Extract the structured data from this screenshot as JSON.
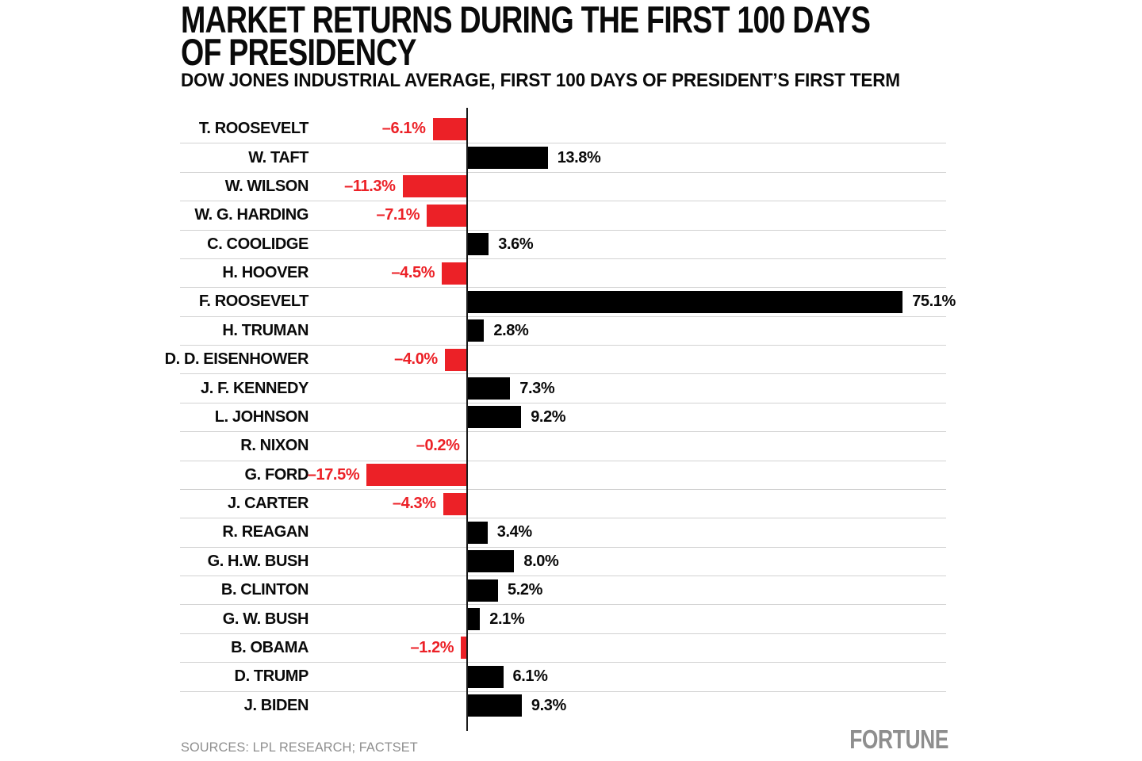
{
  "page": {
    "title_lines": [
      "MARKET RETURNS DURING THE FIRST 100 DAYS",
      "OF PRESIDENCY"
    ],
    "subtitle": "DOW JONES INDUSTRIAL AVERAGE, FIRST 100 DAYS OF PRESIDENT’S FIRST TERM",
    "source_note": "SOURCES: LPL RESEARCH; FACTSET",
    "brand": "FORTUNE"
  },
  "colors": {
    "background": "#ffffff",
    "text": "#0a0a0a",
    "positive": "#000000",
    "negative": "#EC2127",
    "gridline": "#d2d2d2",
    "axis": "#1b1b1b",
    "muted": "#8e8e8e"
  },
  "chart_data": {
    "type": "bar",
    "orientation": "horizontal",
    "title": "MARKET RETURNS DURING THE FIRST 100 DAYS OF PRESIDENCY",
    "subtitle": "DOW JONES INDUSTRIAL AVERAGE, FIRST 100 DAYS OF PRESIDENT’S FIRST TERM",
    "unit": "percent",
    "xlim": [
      -20,
      83
    ],
    "grid": "horizontal row separators, no top line, no line under last row",
    "legend": "none",
    "value_label_position": "outside bar end; negatives red, positives black",
    "categories": [
      "T. ROOSEVELT",
      "W. TAFT",
      "W. WILSON",
      "W. G. HARDING",
      "C. COOLIDGE",
      "H. HOOVER",
      "F. ROOSEVELT",
      "H. TRUMAN",
      "D. D. EISENHOWER",
      "J. F. KENNEDY",
      "L. JOHNSON",
      "R. NIXON",
      "G. FORD",
      "J. CARTER",
      "R. REAGAN",
      "G. H.W. BUSH",
      "B. CLINTON",
      "G. W. BUSH",
      "B. OBAMA",
      "D. TRUMP",
      "J. BIDEN"
    ],
    "values": [
      -6.1,
      13.8,
      -11.3,
      -7.1,
      3.6,
      -4.5,
      75.1,
      2.8,
      -4.0,
      7.3,
      9.2,
      -0.2,
      -17.5,
      -4.3,
      3.4,
      8.0,
      5.2,
      2.1,
      -1.2,
      6.1,
      9.3
    ],
    "value_labels": [
      "–6.1%",
      "13.8%",
      "–11.3%",
      "–7.1%",
      "3.6%",
      "–4.5%",
      "75.1%",
      "2.8%",
      "–4.0%",
      "7.3%",
      "9.2%",
      "–0.2%",
      "–17.5%",
      "–4.3%",
      "3.4%",
      "8.0%",
      "5.2%",
      "2.1%",
      "–1.2%",
      "6.1%",
      "9.3%"
    ]
  }
}
